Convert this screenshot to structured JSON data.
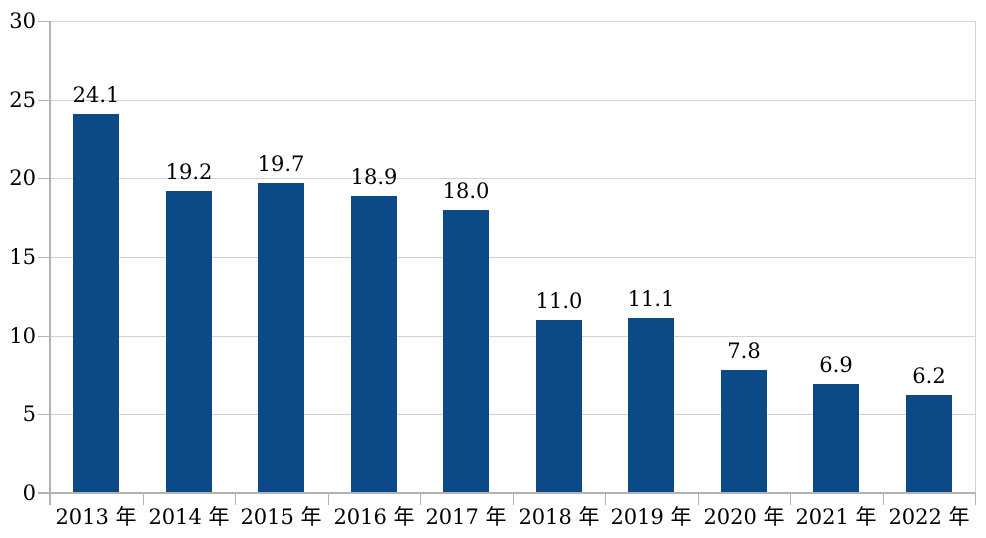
{
  "chart_data": {
    "type": "bar",
    "title": "",
    "xlabel": "",
    "ylabel": "",
    "categories": [
      "2013 年",
      "2014 年",
      "2015 年",
      "2016 年",
      "2017 年",
      "2018 年",
      "2019 年",
      "2020 年",
      "2021 年",
      "2022 年"
    ],
    "values": [
      24.1,
      19.2,
      19.7,
      18.9,
      18.0,
      11.0,
      11.1,
      7.8,
      6.9,
      6.2
    ],
    "data_labels": [
      "24.1",
      "19.2",
      "19.7",
      "18.9",
      "18.0",
      "11.0",
      "11.1",
      "7.8",
      "6.9",
      "6.2"
    ],
    "ylim": [
      0,
      30
    ],
    "yticks": [
      0,
      5,
      10,
      15,
      20,
      25,
      30
    ],
    "ytick_labels": [
      "0",
      "5",
      "10",
      "15",
      "20",
      "25",
      "30"
    ],
    "grid": true,
    "legend": "none",
    "colors": {
      "bar": "#0c4a87",
      "gridline": "#d3d3d3",
      "axis": "#b3b3b3",
      "text": "#000000",
      "background": "#ffffff"
    }
  }
}
